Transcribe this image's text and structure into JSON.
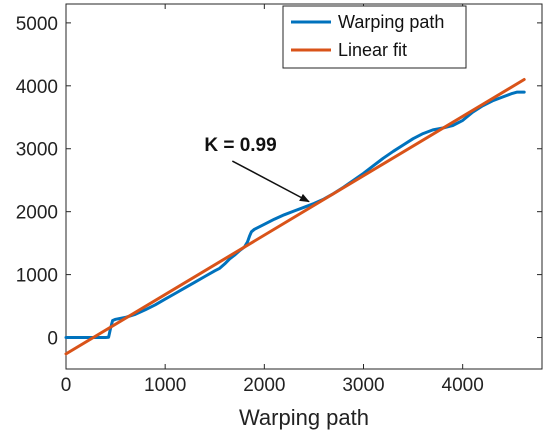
{
  "chart_data": {
    "type": "line",
    "title": "",
    "xlabel": "Warping path",
    "ylabel": "",
    "xlim": [
      0,
      4800
    ],
    "ylim": [
      -500,
      5300
    ],
    "xticks": [
      0,
      1000,
      2000,
      3000,
      4000
    ],
    "yticks": [
      0,
      1000,
      2000,
      3000,
      4000,
      5000
    ],
    "grid": false,
    "legend": {
      "position": "top-right"
    },
    "series": [
      {
        "name": "Warping path",
        "color": "#0072BD",
        "x": [
          0,
          100,
          200,
          300,
          400,
          430,
          450,
          470,
          500,
          600,
          700,
          800,
          900,
          1000,
          1100,
          1200,
          1300,
          1400,
          1500,
          1550,
          1600,
          1650,
          1700,
          1750,
          1800,
          1830,
          1850,
          1870,
          1900,
          2000,
          2100,
          2200,
          2300,
          2400,
          2500,
          2600,
          2700,
          2800,
          2900,
          3000,
          3100,
          3200,
          3300,
          3400,
          3500,
          3600,
          3700,
          3800,
          3900,
          4000,
          4100,
          4200,
          4300,
          4400,
          4500,
          4550,
          4620
        ],
        "y": [
          0,
          0,
          0,
          0,
          0,
          5,
          150,
          270,
          290,
          320,
          370,
          440,
          520,
          610,
          700,
          790,
          880,
          970,
          1060,
          1100,
          1170,
          1250,
          1310,
          1380,
          1440,
          1520,
          1610,
          1680,
          1720,
          1800,
          1880,
          1950,
          2010,
          2070,
          2130,
          2200,
          2290,
          2390,
          2500,
          2610,
          2730,
          2850,
          2960,
          3060,
          3160,
          3240,
          3300,
          3330,
          3370,
          3450,
          3580,
          3680,
          3760,
          3820,
          3880,
          3900,
          3900
        ]
      },
      {
        "name": "Linear fit",
        "color": "#D95319",
        "x": [
          0,
          4620
        ],
        "y": [
          -260,
          4100
        ]
      }
    ],
    "annotations": [
      {
        "text": "K = 0.99",
        "x": 2000,
        "y": 2900,
        "arrow_to": [
          2450,
          2160
        ]
      }
    ]
  }
}
